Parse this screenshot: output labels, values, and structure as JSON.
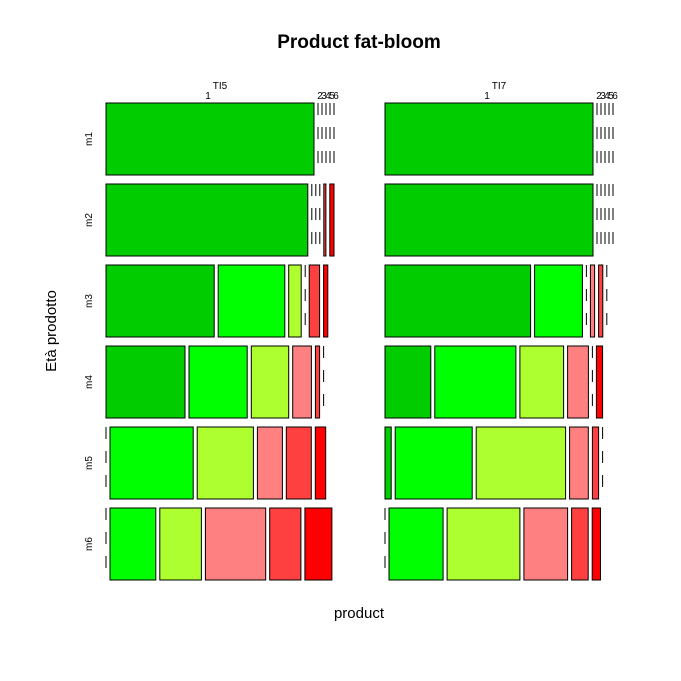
{
  "chart_data": {
    "type": "mosaic",
    "title": "Product fat-bloom",
    "xlabel": "product",
    "ylabel": "Età prodotto",
    "groups": [
      "TI5",
      "TI7"
    ],
    "rows": [
      "m1",
      "m2",
      "m3",
      "m4",
      "m5",
      "m6"
    ],
    "levels": [
      "1",
      "2",
      "3",
      "4",
      "5",
      "6"
    ],
    "level_colors": [
      "#00CC00",
      "#00FF00",
      "#ADFF2F",
      "#FF8080",
      "#FF4040",
      "#FF0000"
    ],
    "proportions": {
      "TI5": [
        [
          1.0,
          0.0,
          0.0,
          0.0,
          0.0,
          0.0
        ],
        [
          0.97,
          0.0,
          0.0,
          0.0,
          0.01,
          0.02
        ],
        [
          0.52,
          0.32,
          0.06,
          0.0,
          0.05,
          0.02
        ],
        [
          0.38,
          0.28,
          0.18,
          0.09,
          0.02,
          0.0
        ],
        [
          0.0,
          0.4,
          0.27,
          0.12,
          0.12,
          0.05
        ],
        [
          0.0,
          0.22,
          0.2,
          0.29,
          0.15,
          0.13
        ]
      ],
      "TI7": [
        [
          1.0,
          0.0,
          0.0,
          0.0,
          0.0,
          0.0
        ],
        [
          1.0,
          0.0,
          0.0,
          0.0,
          0.0,
          0.0
        ],
        [
          0.7,
          0.23,
          0.0,
          0.02,
          0.02,
          0.0
        ],
        [
          0.22,
          0.39,
          0.21,
          0.1,
          0.0,
          0.03
        ],
        [
          0.03,
          0.37,
          0.43,
          0.09,
          0.03,
          0.0
        ],
        [
          0.0,
          0.26,
          0.35,
          0.21,
          0.08,
          0.04
        ]
      ]
    }
  }
}
